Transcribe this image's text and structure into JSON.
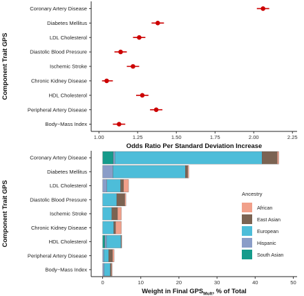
{
  "chart_data": [
    {
      "type": "scatter",
      "variant": "forest-plot",
      "title": "",
      "xlabel": "Odds Ratio Per Standard Deviation Increase",
      "ylabel": "Component Trait GPS",
      "xlim": [
        0.95,
        2.28
      ],
      "x_ticks": [
        1.0,
        1.25,
        1.5,
        1.75,
        2.0,
        2.25
      ],
      "x_tick_labels": [
        "1.00",
        "1.25",
        "1.50",
        "1.75",
        "2.00",
        "2.25"
      ],
      "categories": [
        "Coronary Artery Disease",
        "Diabetes Mellitus",
        "LDL Cholesterol",
        "Diastolic Blood Pressure",
        "Ischemic Stroke",
        "Chronic Kidney Disease",
        "HDL Cholesterol",
        "Peripheral Artery Disease",
        "Body−Mass Index"
      ],
      "points": [
        {
          "estimate": 2.06,
          "lower": 2.02,
          "upper": 2.1
        },
        {
          "estimate": 1.38,
          "lower": 1.34,
          "upper": 1.42
        },
        {
          "estimate": 1.26,
          "lower": 1.22,
          "upper": 1.3
        },
        {
          "estimate": 1.14,
          "lower": 1.1,
          "upper": 1.18
        },
        {
          "estimate": 1.22,
          "lower": 1.18,
          "upper": 1.26
        },
        {
          "estimate": 1.05,
          "lower": 1.02,
          "upper": 1.09
        },
        {
          "estimate": 1.28,
          "lower": 1.24,
          "upper": 1.32
        },
        {
          "estimate": 1.37,
          "lower": 1.33,
          "upper": 1.41
        },
        {
          "estimate": 1.13,
          "lower": 1.09,
          "upper": 1.17
        }
      ],
      "point_color": "#cc0000",
      "grid": false
    },
    {
      "type": "bar",
      "orientation": "horizontal",
      "stacked": true,
      "title": "",
      "xlabel_main": "Weight in Final GPS",
      "xlabel_subscript": "Mult",
      "xlabel_suffix": ", % of Total",
      "ylabel": "Component Trait GPS",
      "xlim": [
        -3,
        51
      ],
      "x_ticks": [
        0,
        10,
        20,
        30,
        40,
        50
      ],
      "x_tick_labels": [
        "0",
        "10",
        "20",
        "30",
        "40",
        "50"
      ],
      "categories": [
        "Coronary Artery Disease",
        "Diabetes Mellitus",
        "LDL Cholesterol",
        "Diastolic Blood Pressure",
        "Ischemic Stroke",
        "Chronic Kidney Disease",
        "HDL Cholesterol",
        "Peripheral Artery Disease",
        "Body−Mass Index"
      ],
      "stack_order": [
        "South Asian",
        "Hispanic",
        "European",
        "East Asian",
        "African"
      ],
      "series": [
        {
          "name": "African",
          "color": "#f1a08a",
          "values": [
            0.4,
            0.3,
            1.3,
            0.3,
            1.0,
            1.5,
            0.1,
            0.4,
            0.2
          ]
        },
        {
          "name": "East Asian",
          "color": "#7b6352",
          "values": [
            4.0,
            0.6,
            0.8,
            2.1,
            1.5,
            0.5,
            0.1,
            1.0,
            0.3
          ]
        },
        {
          "name": "European",
          "color": "#4dbdd9",
          "values": [
            38.6,
            19.0,
            3.6,
            3.7,
            2.4,
            2.9,
            3.8,
            1.3,
            1.6
          ]
        },
        {
          "name": "Hispanic",
          "color": "#8a9dc8",
          "values": [
            0.4,
            2.7,
            1.1,
            0.0,
            0.0,
            0.0,
            0.4,
            0.3,
            0.4
          ]
        },
        {
          "name": "South Asian",
          "color": "#159b8b",
          "values": [
            2.8,
            0.0,
            0.0,
            0.0,
            0.0,
            0.0,
            0.6,
            0.0,
            0.0
          ]
        }
      ],
      "legend": {
        "title": "Ancestry",
        "position": "right-bottom"
      },
      "grid": false
    }
  ]
}
